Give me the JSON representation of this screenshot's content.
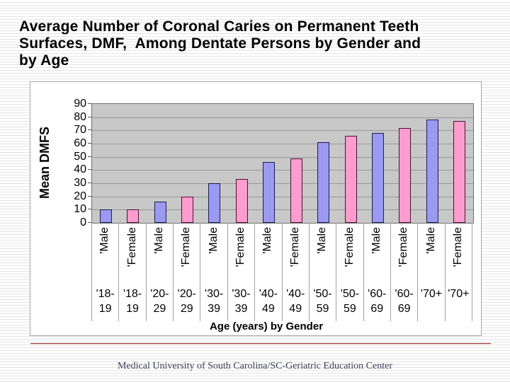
{
  "title_lines": [
    "Average Number of Coronal Caries on Permanent Teeth",
    "Surfaces, DMF,  Among Dentate Persons by Gender and",
    "by Age"
  ],
  "footer": "Medical University of South Carolina/SC-Geriatric Education Center",
  "chart_data": {
    "type": "bar",
    "title": "Average Number of Coronal Caries on Permanent Teeth Surfaces, DMF, Among Dentate Persons by Gender and by Age",
    "ylabel": "Mean DMFS",
    "xlabel": "Age (years) by Gender",
    "ylim": [
      0,
      90
    ],
    "yticks": [
      0,
      10,
      20,
      30,
      40,
      50,
      60,
      70,
      80,
      90
    ],
    "grid": true,
    "legend": "none",
    "plot_bg": "#c8c8c8",
    "colors": {
      "male_fill": "#9a9af1",
      "male_border": "#1b1b4f",
      "female_fill": "#ff9cce",
      "female_border": "#46132f"
    },
    "bars": [
      {
        "gender": "'Male",
        "age_line1": "'18-",
        "age_line2": "19",
        "age": "18-19",
        "sex": "male",
        "value": 10
      },
      {
        "gender": "'Female",
        "age_line1": "'18-",
        "age_line2": "19",
        "age": "18-19",
        "sex": "female",
        "value": 10
      },
      {
        "gender": "'Male",
        "age_line1": "'20-",
        "age_line2": "29",
        "age": "20-29",
        "sex": "male",
        "value": 16
      },
      {
        "gender": "'Female",
        "age_line1": "'20-",
        "age_line2": "29",
        "age": "20-29",
        "sex": "female",
        "value": 20
      },
      {
        "gender": "'Male",
        "age_line1": "'30-",
        "age_line2": "39",
        "age": "30-39",
        "sex": "male",
        "value": 30
      },
      {
        "gender": "'Female",
        "age_line1": "'30-",
        "age_line2": "39",
        "age": "30-39",
        "sex": "female",
        "value": 33
      },
      {
        "gender": "'Male",
        "age_line1": "'40-",
        "age_line2": "49",
        "age": "40-49",
        "sex": "male",
        "value": 46
      },
      {
        "gender": "'Female",
        "age_line1": "'40-",
        "age_line2": "49",
        "age": "40-49",
        "sex": "female",
        "value": 49
      },
      {
        "gender": "'Male",
        "age_line1": "'50-",
        "age_line2": "59",
        "age": "50-59",
        "sex": "male",
        "value": 61
      },
      {
        "gender": "'Female",
        "age_line1": "'50-",
        "age_line2": "59",
        "age": "50-59",
        "sex": "female",
        "value": 66
      },
      {
        "gender": "'Male",
        "age_line1": "'60-",
        "age_line2": "69",
        "age": "60-69",
        "sex": "male",
        "value": 68
      },
      {
        "gender": "'Female",
        "age_line1": "'60-",
        "age_line2": "69",
        "age": "60-69",
        "sex": "female",
        "value": 72
      },
      {
        "gender": "'Male",
        "age_line1": "'70+",
        "age_line2": "",
        "age": "70+",
        "sex": "male",
        "value": 78
      },
      {
        "gender": "'Female",
        "age_line1": "'70+",
        "age_line2": "",
        "age": "70+",
        "sex": "female",
        "value": 77
      }
    ]
  }
}
